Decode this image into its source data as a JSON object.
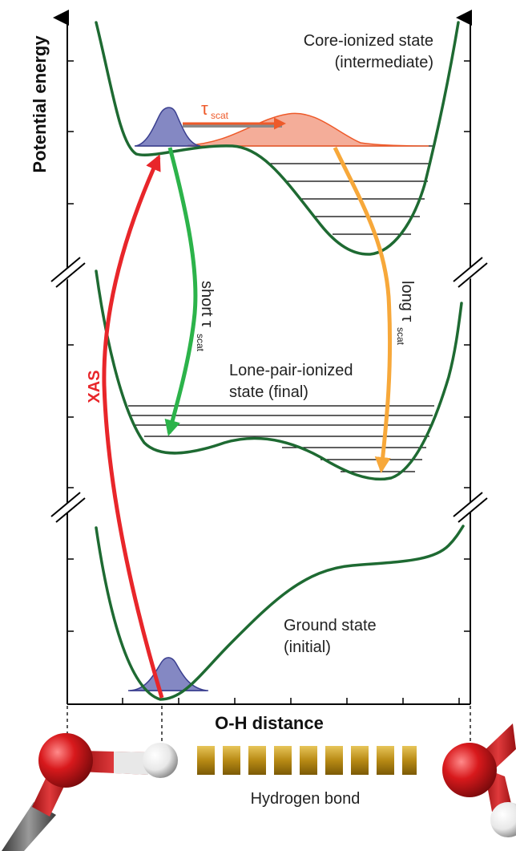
{
  "axes": {
    "y_label": "Potential energy",
    "x_label": "O-H distance"
  },
  "states": {
    "core": {
      "line1": "Core-ionized state",
      "line2": "(intermediate)"
    },
    "lone_pair": {
      "line1": "Lone-pair-ionized",
      "line2": "state (final)"
    },
    "ground": {
      "line1": "Ground state",
      "line2": "(initial)"
    }
  },
  "transitions": {
    "tau": "τ",
    "scat_sub": "scat",
    "short_prefix": "short τ",
    "long_prefix": "long τ",
    "xas": "XAS"
  },
  "molecule": {
    "bond_label": "Hydrogen bond"
  },
  "colors": {
    "potential_curve": "#1e6a32",
    "xas_arrow": "#e8262a",
    "short_arrow": "#2cb34a",
    "long_arrow": "#f7a83a",
    "wavepacket_blue": "#6f73b8",
    "wavepacket_orange": "#f08a6e",
    "tau_arrow": "#ee5a2a",
    "oxygen": "#d8191c",
    "hydrogen": "#f2f2f2",
    "hbond": "#c9a227"
  }
}
